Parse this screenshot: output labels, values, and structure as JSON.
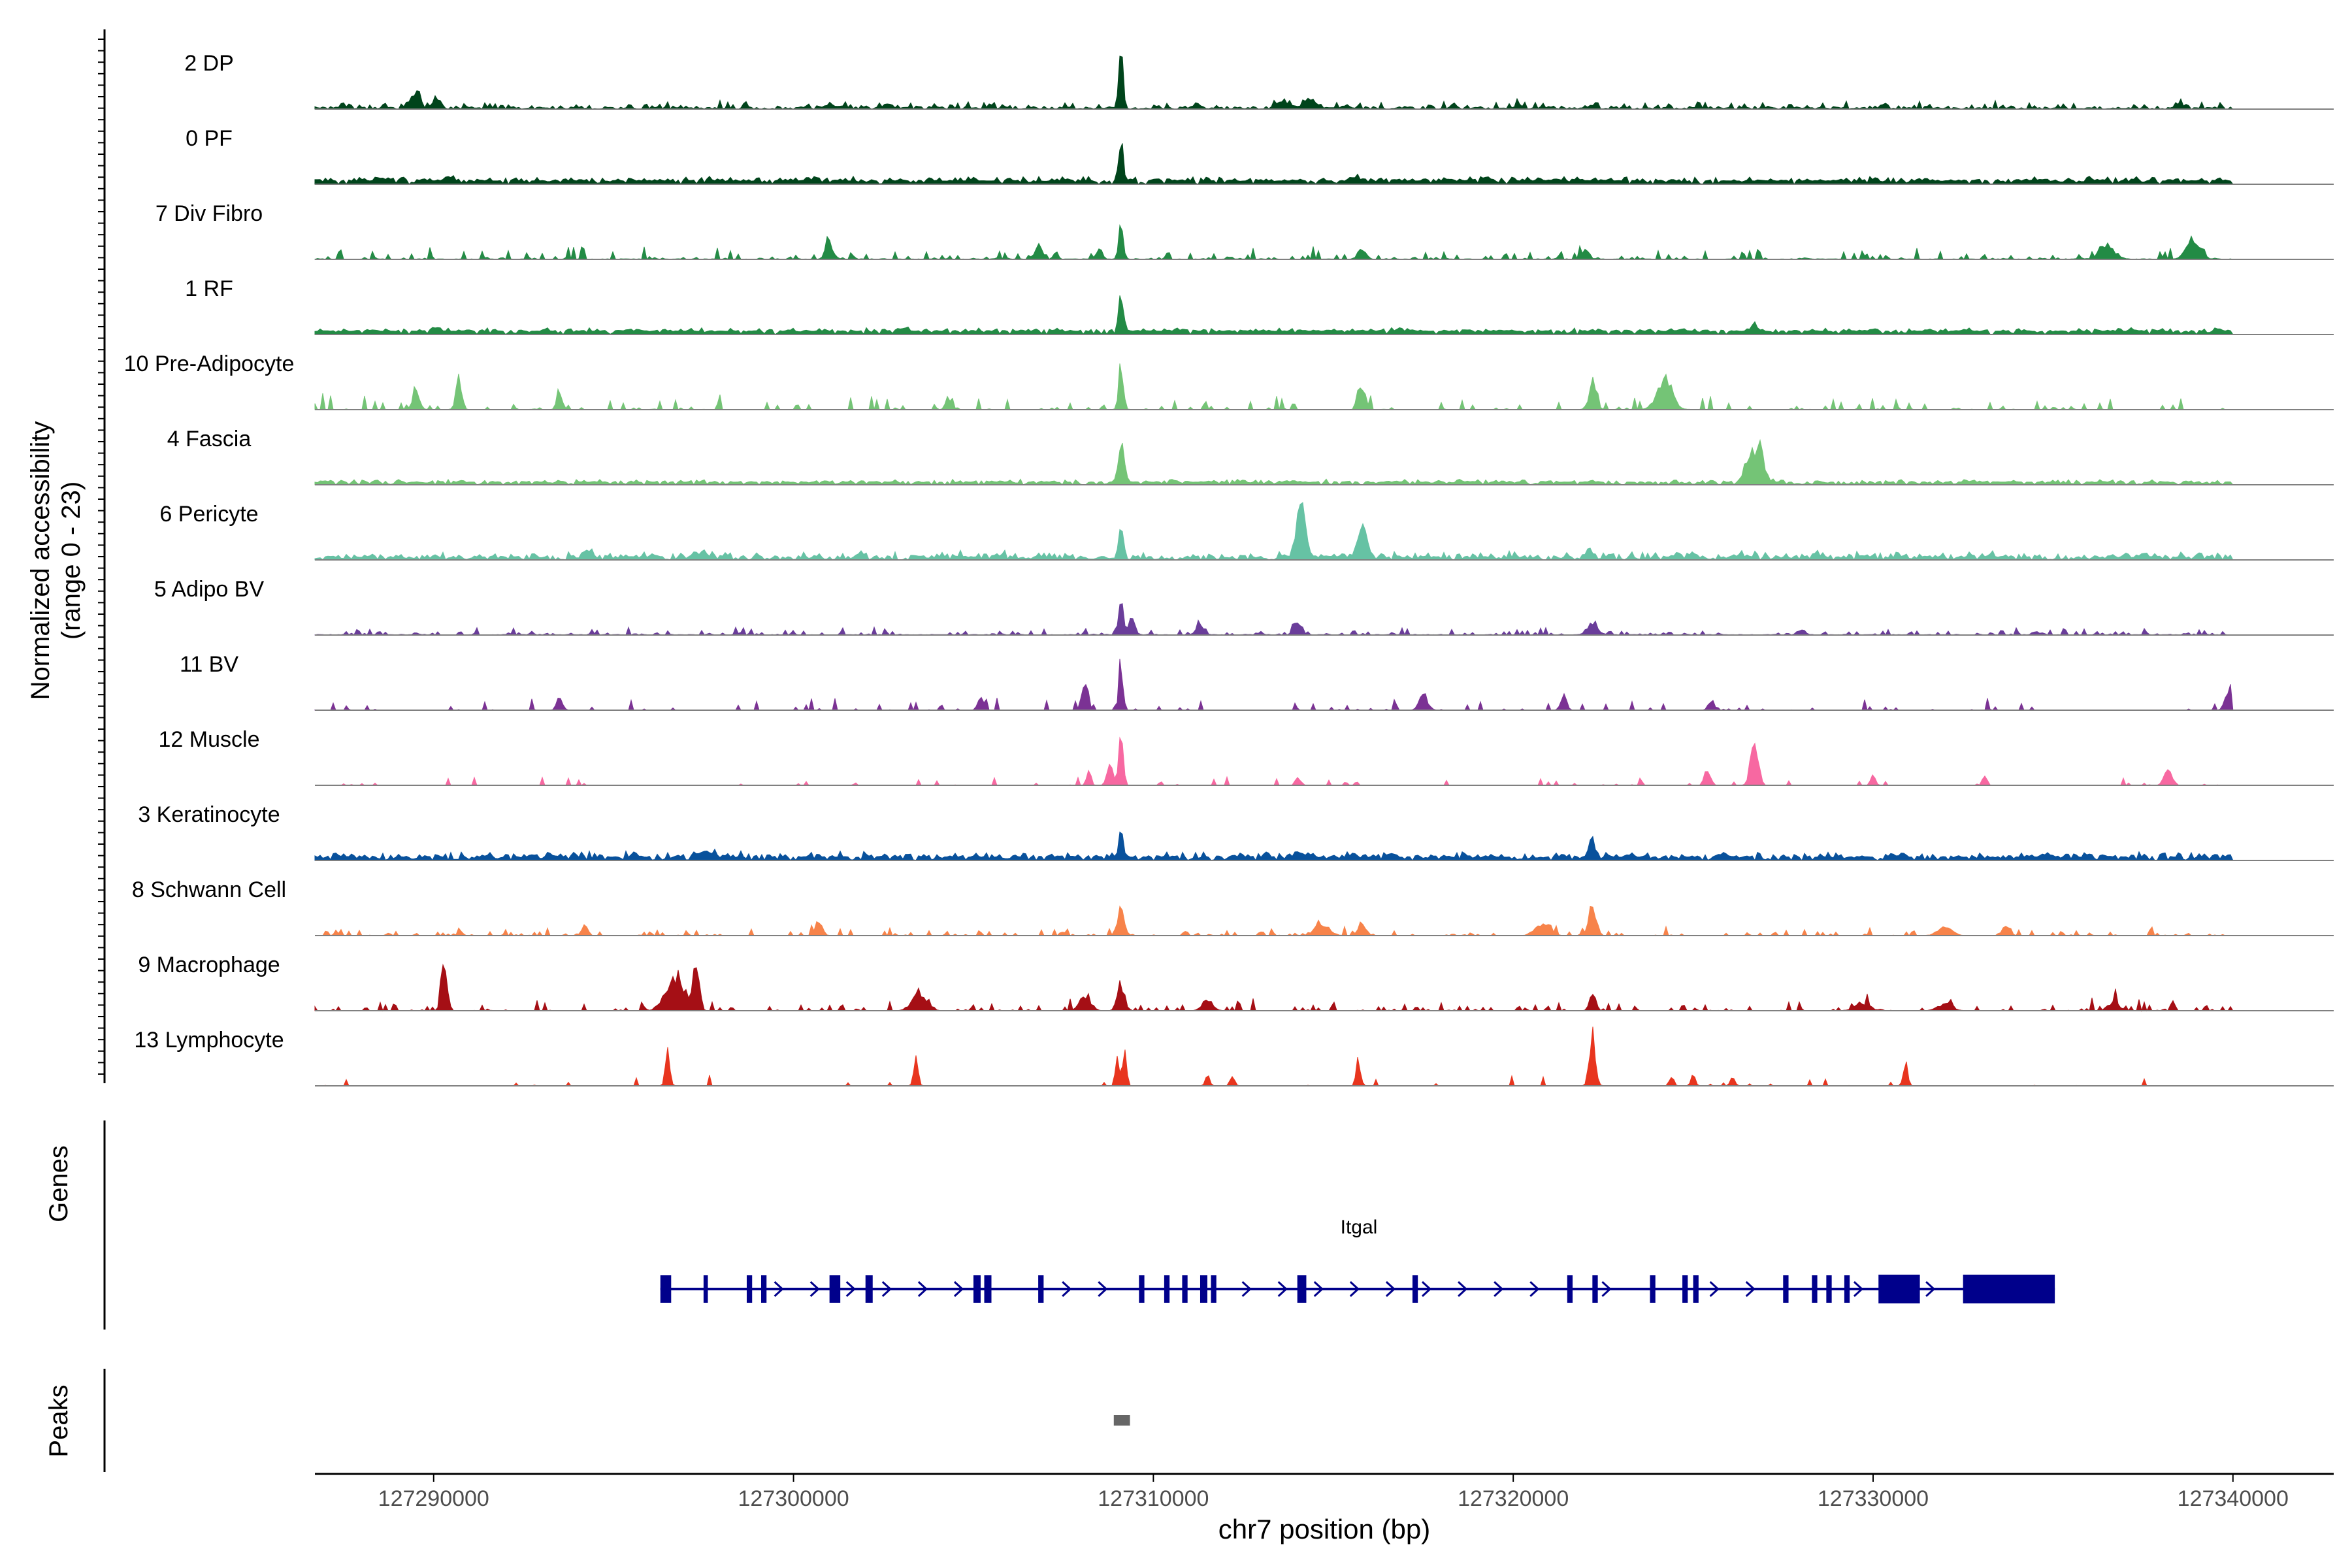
{
  "chart_data": {
    "type": "area",
    "title": "",
    "ylabel_line1": "Normalized accessibility",
    "ylabel_line2": "(range 0 - 23)",
    "yrange": [
      0,
      23
    ],
    "xlabel": "chr7 position (bp)",
    "xlim": [
      127286700,
      127342800
    ],
    "xticks": [
      127290000,
      127300000,
      127310000,
      127320000,
      127330000,
      127340000
    ],
    "xtick_labels": [
      "127290000",
      "127300000",
      "127310000",
      "127320000",
      "127330000",
      "127340000"
    ],
    "genes_label": "Genes",
    "peaks_label": "Peaks",
    "gene": {
      "name": "Itgal",
      "color": "#00008B",
      "start": 127296300,
      "end": 127335050,
      "strand": "+",
      "exons": [
        [
          127296300,
          127296600
        ],
        [
          127297500,
          127297620
        ],
        [
          127298700,
          127298850
        ],
        [
          127299100,
          127299250
        ],
        [
          127301000,
          127301300
        ],
        [
          127302000,
          127302200
        ],
        [
          127305000,
          127305200
        ],
        [
          127305300,
          127305500
        ],
        [
          127306800,
          127306950
        ],
        [
          127309600,
          127309750
        ],
        [
          127310300,
          127310450
        ],
        [
          127310800,
          127310950
        ],
        [
          127311300,
          127311500
        ],
        [
          127311600,
          127311750
        ],
        [
          127314000,
          127314250
        ],
        [
          127317200,
          127317350
        ],
        [
          127321500,
          127321650
        ],
        [
          127322200,
          127322350
        ],
        [
          127323800,
          127323950
        ],
        [
          127324700,
          127324850
        ],
        [
          127325000,
          127325150
        ],
        [
          127327500,
          127327650
        ],
        [
          127328300,
          127328450
        ],
        [
          127328700,
          127328850
        ],
        [
          127329200,
          127329350
        ],
        [
          127330150,
          127331300
        ],
        [
          127332500,
          127335050
        ]
      ]
    },
    "peaks": [
      {
        "start": 127308900,
        "end": 127309350,
        "color": "#666666"
      }
    ],
    "series": [
      {
        "name": "2 DP",
        "color": "#00441B",
        "baseline": 0.025,
        "noise": 0.12,
        "sparsity": 0.55,
        "peaks": [
          [
            127309100,
            60,
            1.0
          ],
          [
            127289500,
            120,
            0.3
          ],
          [
            127290100,
            100,
            0.2
          ],
          [
            127313600,
            180,
            0.12
          ],
          [
            127314300,
            150,
            0.1
          ],
          [
            127311200,
            100,
            0.08
          ],
          [
            127301000,
            100,
            0.08
          ],
          [
            127320200,
            100,
            0.06
          ],
          [
            127322200,
            100,
            0.06
          ],
          [
            127338500,
            100,
            0.06
          ]
        ]
      },
      {
        "name": "0 PF",
        "color": "#00441B",
        "baseline": 0.05,
        "noise": 0.08,
        "sparsity": 0.2,
        "peaks": [
          [
            127309100,
            60,
            0.72
          ],
          [
            127315600,
            150,
            0.1
          ],
          [
            127290500,
            150,
            0.06
          ],
          [
            127300500,
            150,
            0.05
          ],
          [
            127318000,
            150,
            0.05
          ]
        ]
      },
      {
        "name": "7 Div Fibro",
        "color": "#238B45",
        "baseline": 0.01,
        "noise": 0.2,
        "sparsity": 0.72,
        "peaks": [
          [
            127309100,
            60,
            0.75
          ],
          [
            127338900,
            180,
            0.4
          ],
          [
            127301000,
            100,
            0.3
          ],
          [
            127306800,
            100,
            0.25
          ],
          [
            127315800,
            100,
            0.22
          ],
          [
            127308500,
            80,
            0.2
          ],
          [
            127322000,
            100,
            0.2
          ],
          [
            127336500,
            200,
            0.25
          ]
        ]
      },
      {
        "name": "1 RF",
        "color": "#238B45",
        "baseline": 0.05,
        "noise": 0.06,
        "sparsity": 0.2,
        "peaks": [
          [
            127309100,
            60,
            0.7
          ],
          [
            127326700,
            80,
            0.15
          ],
          [
            127290000,
            150,
            0.05
          ],
          [
            127303000,
            150,
            0.04
          ],
          [
            127317000,
            150,
            0.04
          ]
        ]
      },
      {
        "name": "10 Pre-Adipocyte",
        "color": "#74C476",
        "baseline": 0.005,
        "noise": 0.25,
        "sparsity": 0.75,
        "peaks": [
          [
            127309100,
            60,
            0.9
          ],
          [
            127290700,
            80,
            0.55
          ],
          [
            127324200,
            200,
            0.62
          ],
          [
            127322200,
            100,
            0.45
          ],
          [
            127315800,
            100,
            0.4
          ],
          [
            127289500,
            100,
            0.3
          ],
          [
            127293500,
            80,
            0.25
          ],
          [
            127304300,
            80,
            0.22
          ]
        ]
      },
      {
        "name": "4 Fascia",
        "color": "#74C476",
        "baseline": 0.04,
        "noise": 0.05,
        "sparsity": 0.3,
        "peaks": [
          [
            127309100,
            80,
            0.78
          ],
          [
            127326800,
            150,
            0.72
          ],
          [
            127326500,
            100,
            0.35
          ],
          [
            127310500,
            100,
            0.05
          ]
        ]
      },
      {
        "name": "6 Pericyte",
        "color": "#66C2A4",
        "baseline": 0.05,
        "noise": 0.1,
        "sparsity": 0.45,
        "peaks": [
          [
            127314100,
            130,
            1.0
          ],
          [
            127315800,
            130,
            0.6
          ],
          [
            127309100,
            60,
            0.5
          ],
          [
            127294300,
            120,
            0.15
          ],
          [
            127297500,
            200,
            0.1
          ],
          [
            127322100,
            100,
            0.12
          ],
          [
            127325000,
            100,
            0.1
          ]
        ]
      },
      {
        "name": "5 Adipo BV",
        "color": "#6A3D9A",
        "baseline": 0.01,
        "noise": 0.12,
        "sparsity": 0.65,
        "peaks": [
          [
            127309100,
            60,
            0.65
          ],
          [
            127314000,
            100,
            0.28
          ],
          [
            127322200,
            150,
            0.2
          ],
          [
            127309400,
            80,
            0.3
          ],
          [
            127311300,
            100,
            0.2
          ],
          [
            127328000,
            100,
            0.1
          ]
        ]
      },
      {
        "name": "11 BV",
        "color": "#7B3294",
        "baseline": 0.0,
        "noise": 0.22,
        "sparsity": 0.86,
        "peaks": [
          [
            127309100,
            60,
            0.85
          ],
          [
            127308100,
            80,
            0.6
          ],
          [
            127339900,
            100,
            0.45
          ],
          [
            127293500,
            80,
            0.28
          ],
          [
            127305200,
            80,
            0.25
          ],
          [
            127317500,
            120,
            0.3
          ],
          [
            127321400,
            80,
            0.28
          ],
          [
            127325500,
            80,
            0.2
          ]
        ]
      },
      {
        "name": "12 Muscle",
        "color": "#F768A1",
        "baseline": 0.0,
        "noise": 0.15,
        "sparsity": 0.9,
        "peaks": [
          [
            127309100,
            60,
            1.0
          ],
          [
            127326700,
            100,
            0.9
          ],
          [
            127308800,
            80,
            0.45
          ],
          [
            127338200,
            100,
            0.4
          ],
          [
            127325400,
            80,
            0.35
          ],
          [
            127308200,
            60,
            0.3
          ],
          [
            127314000,
            60,
            0.2
          ],
          [
            127333100,
            60,
            0.2
          ],
          [
            127330000,
            60,
            0.2
          ]
        ]
      },
      {
        "name": "3 Keratinocyte",
        "color": "#08519C",
        "baseline": 0.05,
        "noise": 0.1,
        "sparsity": 0.25,
        "peaks": [
          [
            127309100,
            60,
            0.45
          ],
          [
            127322200,
            80,
            0.35
          ],
          [
            127297500,
            200,
            0.1
          ],
          [
            127314000,
            200,
            0.08
          ]
        ]
      },
      {
        "name": "8 Schwann Cell",
        "color": "#F7834A",
        "baseline": 0.0,
        "noise": 0.15,
        "sparsity": 0.7,
        "peaks": [
          [
            127322200,
            100,
            0.62
          ],
          [
            127309100,
            100,
            0.48
          ],
          [
            127300700,
            100,
            0.25
          ],
          [
            127294200,
            80,
            0.2
          ],
          [
            127314700,
            200,
            0.22
          ],
          [
            127315800,
            100,
            0.25
          ],
          [
            127320800,
            200,
            0.22
          ],
          [
            127333700,
            100,
            0.2
          ],
          [
            127332000,
            200,
            0.15
          ]
        ]
      },
      {
        "name": "9 Macrophage",
        "color": "#A50F15",
        "baseline": 0.0,
        "noise": 0.22,
        "sparsity": 0.72,
        "peaks": [
          [
            127290300,
            80,
            1.0
          ],
          [
            127297300,
            80,
            1.0
          ],
          [
            127296700,
            250,
            0.6
          ],
          [
            127309100,
            100,
            0.5
          ],
          [
            127308100,
            150,
            0.3
          ],
          [
            127303500,
            200,
            0.35
          ],
          [
            127322200,
            80,
            0.35
          ],
          [
            127311500,
            150,
            0.2
          ],
          [
            127329700,
            200,
            0.15
          ],
          [
            127336700,
            150,
            0.15
          ],
          [
            127332000,
            200,
            0.12
          ]
        ]
      },
      {
        "name": "13 Lymphocyte",
        "color": "#E8351E",
        "baseline": 0.0,
        "noise": 0.2,
        "sparsity": 0.94,
        "peaks": [
          [
            127322200,
            80,
            1.0
          ],
          [
            127296500,
            60,
            0.75
          ],
          [
            127309000,
            50,
            0.75
          ],
          [
            127309200,
            50,
            0.75
          ],
          [
            127303400,
            60,
            0.5
          ],
          [
            127315700,
            60,
            0.5
          ],
          [
            127330900,
            60,
            0.45
          ],
          [
            127326100,
            60,
            0.2
          ],
          [
            127325000,
            60,
            0.2
          ],
          [
            127324400,
            60,
            0.2
          ],
          [
            127312200,
            60,
            0.2
          ],
          [
            127311500,
            60,
            0.2
          ]
        ]
      }
    ]
  }
}
